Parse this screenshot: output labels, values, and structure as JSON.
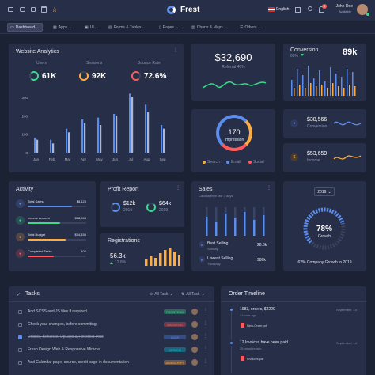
{
  "topbar": {
    "brand": "Frest",
    "language": "English",
    "user_name": "John Doe",
    "user_status": "Available",
    "notif_count": "5"
  },
  "menu": {
    "items": [
      {
        "label": "Dashboard"
      },
      {
        "label": "Apps"
      },
      {
        "label": "UI"
      },
      {
        "label": "Forms & Tables"
      },
      {
        "label": "Pages"
      },
      {
        "label": "Charts & Maps"
      },
      {
        "label": "Others"
      }
    ]
  },
  "analytics": {
    "title": "Website Analytics",
    "stats": [
      {
        "label": "Users",
        "value": "61K",
        "color": "#39da8a"
      },
      {
        "label": "Sessions",
        "value": "92K",
        "color": "#fdac41"
      },
      {
        "label": "Bounce Rate",
        "value": "72.6%",
        "color": "#ff5b5c"
      }
    ]
  },
  "referral": {
    "value": "$32,690",
    "label": "Referral 40%"
  },
  "conversion": {
    "title": "Conversion",
    "value": "89k",
    "percent": "60%"
  },
  "conv_stat": {
    "value": "$38,566",
    "label": "Conversion"
  },
  "income_stat": {
    "value": "$53,659",
    "label": "Income"
  },
  "impression": {
    "value": "170",
    "label": "Impression",
    "legend": [
      "Search",
      "Email",
      "Social"
    ]
  },
  "activity": {
    "title": "Activity",
    "items": [
      {
        "label": "Total Sales",
        "value": "$8,125",
        "color": "#5a8dee",
        "progress": 0.75
      },
      {
        "label": "Income Amount",
        "value": "$18,963",
        "color": "#39da8a",
        "progress": 0.55
      },
      {
        "label": "Total Budget",
        "value": "$14,150",
        "color": "#fdac41",
        "progress": 0.65
      },
      {
        "label": "Completed Tasks",
        "value": "106",
        "color": "#ff5b5c",
        "progress": 0.45
      }
    ]
  },
  "profit": {
    "title": "Profit Report",
    "items": [
      {
        "value": "$12k",
        "label": "2019"
      },
      {
        "value": "$64k",
        "label": "2019"
      }
    ]
  },
  "registrations": {
    "title": "Registrations",
    "value": "56.3k",
    "change": "12.8%"
  },
  "sales": {
    "title": "Sales",
    "subtitle": "Calculated in last 7 days",
    "items": [
      {
        "label": "Best Selling",
        "sub": "Sunday",
        "value": "28.6k"
      },
      {
        "label": "Lowest Selling",
        "sub": "Thursday",
        "value": "986k"
      }
    ]
  },
  "growth": {
    "year": "2019",
    "value": "78%",
    "label": "Growth",
    "caption": "62% Company Growth in 2019",
    "fraction": 0.78
  },
  "tasks": {
    "title": "Tasks",
    "filter1": "All Task",
    "filter2": "All Task",
    "items": [
      {
        "text": "Add SCSS and JS files if required",
        "badge": "FRONTEND",
        "badge_color": "#39da8a",
        "checked": false,
        "strike": false
      },
      {
        "text": "Check your changes, before commiting",
        "badge": "BACKEND",
        "badge_color": "#ff5b5c",
        "checked": false,
        "strike": false
      },
      {
        "text": "Dribble, Behance, UpLabs & Pinterest Post",
        "badge": "UI/UX",
        "badge_color": "#5a8dee",
        "checked": true,
        "strike": true
      },
      {
        "text": "Fresh Design Web & Responsive Miracle",
        "badge": "DESIGN",
        "badge_color": "#00cfdd",
        "checked": false,
        "strike": false
      },
      {
        "text": "Add Calendar page, source, credit page in documentation",
        "badge": "JAVASCRIPT",
        "badge_color": "#fdac41",
        "checked": false,
        "strike": false
      }
    ]
  },
  "timeline": {
    "title": "Order Timeline",
    "items": [
      {
        "title": "1983, orders, $4220",
        "date": "September, 14",
        "sub": "2 hours ago",
        "file": "New-Order.pdf"
      },
      {
        "title": "12 Invoices have been paid",
        "date": "September, 14",
        "sub": "25 minutes ago",
        "file": "Invoices.pdf"
      }
    ]
  },
  "chart_data": [
    {
      "type": "bar",
      "categories": [
        "Jan",
        "Feb",
        "Mar",
        "Apr",
        "May",
        "Jun",
        "Jul",
        "Aug",
        "Sep"
      ],
      "series": [
        {
          "values": [
            80,
            70,
            130,
            180,
            190,
            210,
            320,
            260,
            150
          ],
          "color": "#5a8dee"
        },
        {
          "values": [
            70,
            50,
            110,
            160,
            150,
            200,
            300,
            220,
            130
          ],
          "color": "#a8b8dd"
        }
      ],
      "ylim": [
        0,
        300
      ],
      "yticks": [
        "300",
        "200",
        "100",
        "0"
      ]
    }
  ]
}
